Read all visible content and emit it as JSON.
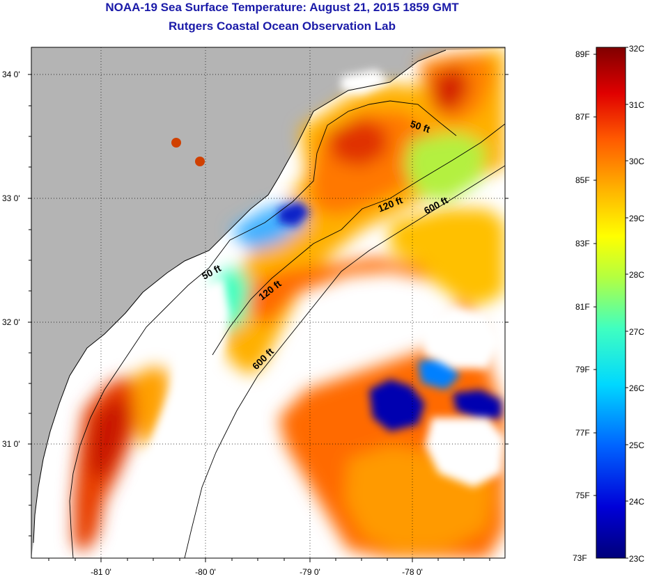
{
  "title": "NOAA-19 Sea Surface Temperature:  August 21, 2015 1859 GMT",
  "subtitle": "Rutgers Coastal Ocean Observation Lab",
  "latitude_labels": [
    "34 0'",
    "33 0'",
    "32 0'",
    "31 0'"
  ],
  "longitude_labels": [
    "-81 0'",
    "-80 0'",
    "-79 0'",
    "-78 0'"
  ],
  "contour_labels": [
    "50 ft",
    "120 ft",
    "600 ft",
    "50 ft",
    "120 ft",
    "600 ft"
  ],
  "colorbar": {
    "fahrenheit_labels": [
      "89F",
      "87F",
      "85F",
      "83F",
      "81F",
      "79F",
      "77F",
      "75F",
      "73F"
    ],
    "celsius_labels": [
      "32C",
      "31C",
      "30C",
      "29C",
      "28C",
      "27C",
      "26C",
      "25C",
      "24C",
      "23C"
    ]
  },
  "colors": {
    "title": "#1a1aa8",
    "land": "#b4b4b4",
    "cloud": "#ffffff"
  }
}
